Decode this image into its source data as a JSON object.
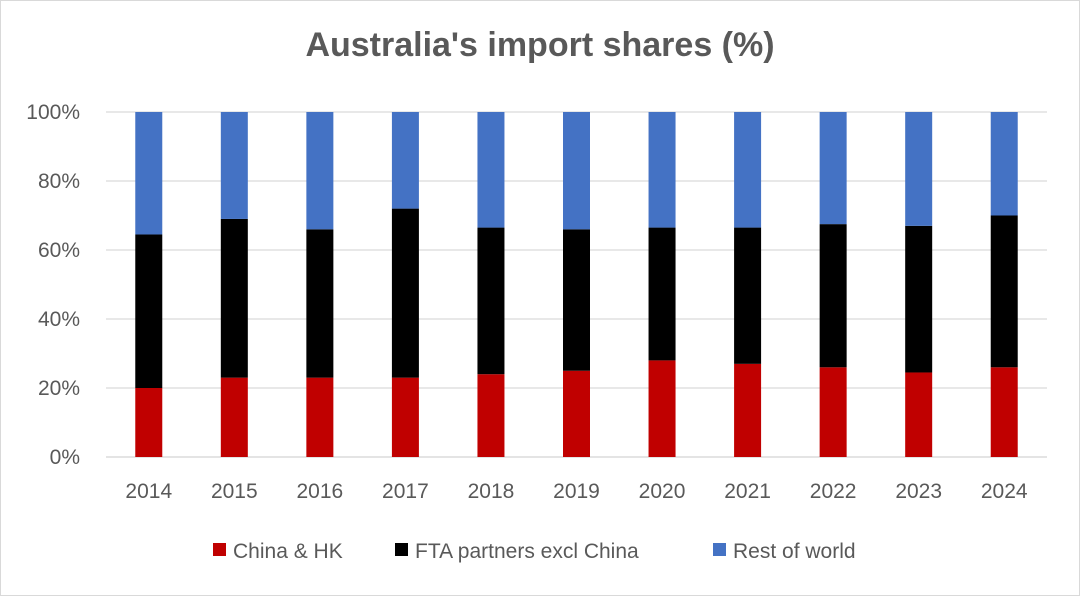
{
  "chart_data": {
    "type": "bar",
    "stacked": true,
    "title": "Australia's import shares (%)",
    "categories": [
      "2014",
      "2015",
      "2016",
      "2017",
      "2018",
      "2019",
      "2020",
      "2021",
      "2022",
      "2023",
      "2024"
    ],
    "series": [
      {
        "name": "China & HK",
        "color": "#c00000",
        "values": [
          20.0,
          23.0,
          23.0,
          23.0,
          24.0,
          25.0,
          28.0,
          27.0,
          26.0,
          24.5,
          26.0
        ]
      },
      {
        "name": "FTA partners excl China",
        "color": "#000000",
        "values": [
          44.5,
          46.0,
          43.0,
          49.0,
          42.5,
          41.0,
          38.5,
          39.5,
          41.5,
          42.5,
          44.0
        ]
      },
      {
        "name": "Rest of world",
        "color": "#4472c4",
        "values": [
          35.5,
          31.0,
          34.0,
          28.0,
          33.5,
          34.0,
          33.5,
          33.5,
          32.5,
          33.0,
          30.0
        ]
      }
    ],
    "ylim": [
      0,
      100
    ],
    "yticks": [
      "0%",
      "20%",
      "40%",
      "60%",
      "80%",
      "100%"
    ],
    "grid": true,
    "legend_position": "bottom"
  }
}
